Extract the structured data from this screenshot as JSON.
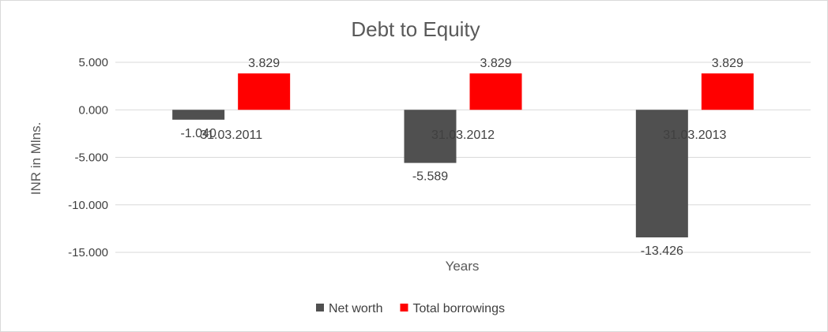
{
  "chart_data": {
    "type": "bar",
    "title": "Debt to Equity",
    "xlabel": "Years",
    "ylabel": "INR in Mlns.",
    "categories": [
      "31.03.2011",
      "31.03.2012",
      "31.03.2013"
    ],
    "series": [
      {
        "name": "Net worth",
        "color": "#505050",
        "values": [
          -1.04,
          -5.589,
          -13.426
        ],
        "labels": [
          "-1.040",
          "-5.589",
          "-13.426"
        ]
      },
      {
        "name": "Total borrowings",
        "color": "#ff0000",
        "values": [
          3.829,
          3.829,
          3.829
        ],
        "labels": [
          "3.829",
          "3.829",
          "3.829"
        ]
      }
    ],
    "ylim": [
      -15,
      5
    ],
    "yticks": [
      5,
      0,
      -5,
      -10,
      -15
    ],
    "ytick_labels": [
      "5.000",
      "0.000",
      "-5.000",
      "-10.000",
      "-15.000"
    ],
    "grid": true,
    "legend": "bottom"
  }
}
